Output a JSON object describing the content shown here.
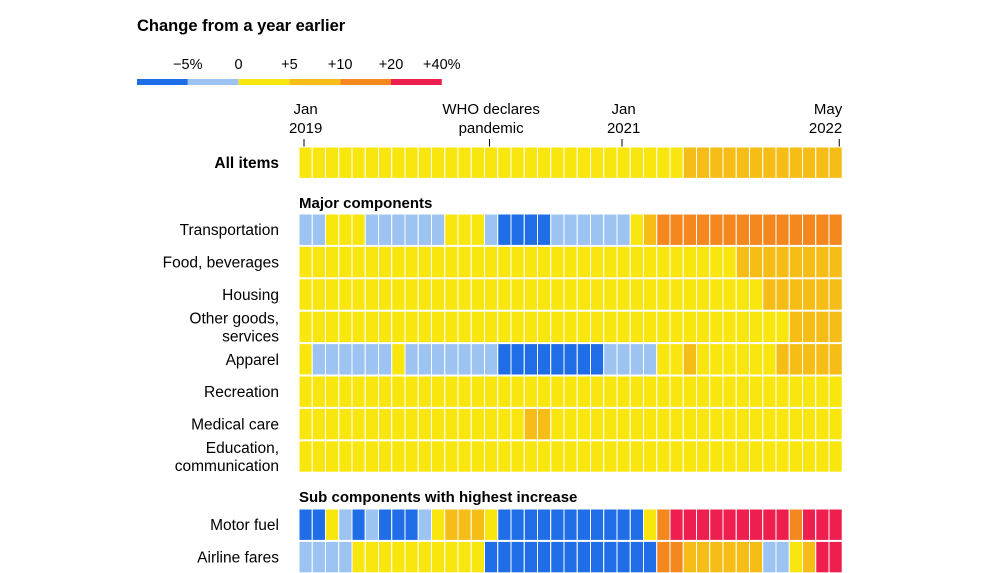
{
  "chart_data": {
    "type": "heatmap",
    "title": "Change from a year earlier",
    "legend": {
      "tick_labels": [
        "−5%",
        "0",
        "+5",
        "+10",
        "+20",
        "+40%"
      ],
      "bins": [
        {
          "label": "below −5%",
          "color": "#1f6ee8"
        },
        {
          "label": "−5% to 0",
          "color": "#9cc3f2"
        },
        {
          "label": "0 to +5",
          "color": "#f9e60f"
        },
        {
          "label": "+5 to +10",
          "color": "#f6bd16"
        },
        {
          "label": "+10 to +20",
          "color": "#f5871f"
        },
        {
          "label": "+20 to +40%",
          "color": "#ee1e4f"
        }
      ]
    },
    "x_months": 41,
    "x_start": "Jan 2019",
    "x_end": "May 2022",
    "annotations": [
      {
        "line1": "Jan",
        "line2": "2019",
        "month_index": 0
      },
      {
        "line1": "WHO declares",
        "line2": "pandemic",
        "month_index": 14
      },
      {
        "line1": "Jan",
        "line2": "2021",
        "month_index": 24
      },
      {
        "line1": "May",
        "line2": "2022",
        "month_index": 40
      }
    ],
    "section_titles": {
      "major": "Major components",
      "sub": "Sub components with highest increase"
    },
    "value_encoding": "0 = below −5%, 1 = −5% to 0, 2 = 0 to +5, 3 = +5 to +10, 4 = +10 to +20, 5 = +20 to +40%",
    "rows": [
      {
        "label": [
          "All items"
        ],
        "bold": true,
        "section": "top",
        "values": [
          2,
          2,
          2,
          2,
          2,
          2,
          2,
          2,
          2,
          2,
          2,
          2,
          2,
          2,
          2,
          2,
          2,
          2,
          2,
          2,
          2,
          2,
          2,
          2,
          2,
          2,
          2,
          2,
          2,
          3,
          3,
          3,
          3,
          3,
          3,
          3,
          3,
          3,
          3,
          3,
          3
        ]
      },
      {
        "label": [
          "Transportation"
        ],
        "section": "major",
        "values": [
          1,
          1,
          2,
          2,
          2,
          1,
          1,
          1,
          1,
          1,
          1,
          2,
          2,
          2,
          1,
          0,
          0,
          0,
          0,
          1,
          1,
          1,
          1,
          1,
          1,
          2,
          3,
          4,
          4,
          4,
          4,
          4,
          4,
          4,
          4,
          4,
          4,
          4,
          4,
          4,
          4
        ]
      },
      {
        "label": [
          "Food, beverages"
        ],
        "section": "major",
        "values": [
          2,
          2,
          2,
          2,
          2,
          2,
          2,
          2,
          2,
          2,
          2,
          2,
          2,
          2,
          2,
          2,
          2,
          2,
          2,
          2,
          2,
          2,
          2,
          2,
          2,
          2,
          2,
          2,
          2,
          2,
          2,
          2,
          2,
          3,
          3,
          3,
          3,
          3,
          3,
          3,
          3
        ]
      },
      {
        "label": [
          "Housing"
        ],
        "section": "major",
        "values": [
          2,
          2,
          2,
          2,
          2,
          2,
          2,
          2,
          2,
          2,
          2,
          2,
          2,
          2,
          2,
          2,
          2,
          2,
          2,
          2,
          2,
          2,
          2,
          2,
          2,
          2,
          2,
          2,
          2,
          2,
          2,
          2,
          2,
          2,
          2,
          3,
          3,
          3,
          3,
          3,
          3
        ]
      },
      {
        "label": [
          "Other goods,",
          "services"
        ],
        "section": "major",
        "values": [
          2,
          2,
          2,
          2,
          2,
          2,
          2,
          2,
          2,
          2,
          2,
          2,
          2,
          2,
          2,
          2,
          2,
          2,
          2,
          2,
          2,
          2,
          2,
          2,
          2,
          2,
          2,
          2,
          2,
          2,
          2,
          2,
          2,
          2,
          2,
          2,
          2,
          3,
          3,
          3,
          3
        ]
      },
      {
        "label": [
          "Apparel"
        ],
        "section": "major",
        "values": [
          2,
          1,
          1,
          1,
          1,
          1,
          1,
          2,
          1,
          1,
          1,
          1,
          1,
          1,
          1,
          0,
          0,
          0,
          0,
          0,
          0,
          0,
          0,
          1,
          1,
          1,
          1,
          2,
          2,
          3,
          2,
          2,
          2,
          2,
          2,
          2,
          3,
          3,
          3,
          3,
          3
        ]
      },
      {
        "label": [
          "Recreation"
        ],
        "section": "major",
        "values": [
          2,
          2,
          2,
          2,
          2,
          2,
          2,
          2,
          2,
          2,
          2,
          2,
          2,
          2,
          2,
          2,
          2,
          2,
          2,
          2,
          2,
          2,
          2,
          2,
          2,
          2,
          2,
          2,
          2,
          2,
          2,
          2,
          2,
          2,
          2,
          2,
          2,
          2,
          2,
          2,
          2
        ]
      },
      {
        "label": [
          "Medical care"
        ],
        "section": "major",
        "values": [
          2,
          2,
          2,
          2,
          2,
          2,
          2,
          2,
          2,
          2,
          2,
          2,
          2,
          2,
          2,
          2,
          2,
          3,
          3,
          2,
          2,
          2,
          2,
          2,
          2,
          2,
          2,
          2,
          2,
          2,
          2,
          2,
          2,
          2,
          2,
          2,
          2,
          2,
          2,
          2,
          2
        ]
      },
      {
        "label": [
          "Education,",
          "communication"
        ],
        "section": "major",
        "values": [
          2,
          2,
          2,
          2,
          2,
          2,
          2,
          2,
          2,
          2,
          2,
          2,
          2,
          2,
          2,
          2,
          2,
          2,
          2,
          2,
          2,
          2,
          2,
          2,
          2,
          2,
          2,
          2,
          2,
          2,
          2,
          2,
          2,
          2,
          2,
          2,
          2,
          2,
          2,
          2,
          2
        ]
      },
      {
        "label": [
          "Motor fuel"
        ],
        "section": "sub",
        "values": [
          0,
          0,
          2,
          1,
          0,
          1,
          0,
          0,
          0,
          1,
          2,
          3,
          3,
          3,
          2,
          0,
          0,
          0,
          0,
          0,
          0,
          0,
          0,
          0,
          0,
          0,
          2,
          4,
          5,
          5,
          5,
          5,
          5,
          5,
          5,
          5,
          5,
          4,
          5,
          5,
          5
        ]
      },
      {
        "label": [
          "Airline fares"
        ],
        "section": "sub",
        "values": [
          1,
          1,
          1,
          1,
          2,
          2,
          2,
          2,
          2,
          2,
          2,
          2,
          2,
          2,
          0,
          0,
          0,
          0,
          0,
          0,
          0,
          0,
          0,
          0,
          0,
          0,
          0,
          4,
          4,
          3,
          3,
          3,
          3,
          3,
          3,
          1,
          1,
          2,
          3,
          5,
          5
        ]
      }
    ]
  }
}
